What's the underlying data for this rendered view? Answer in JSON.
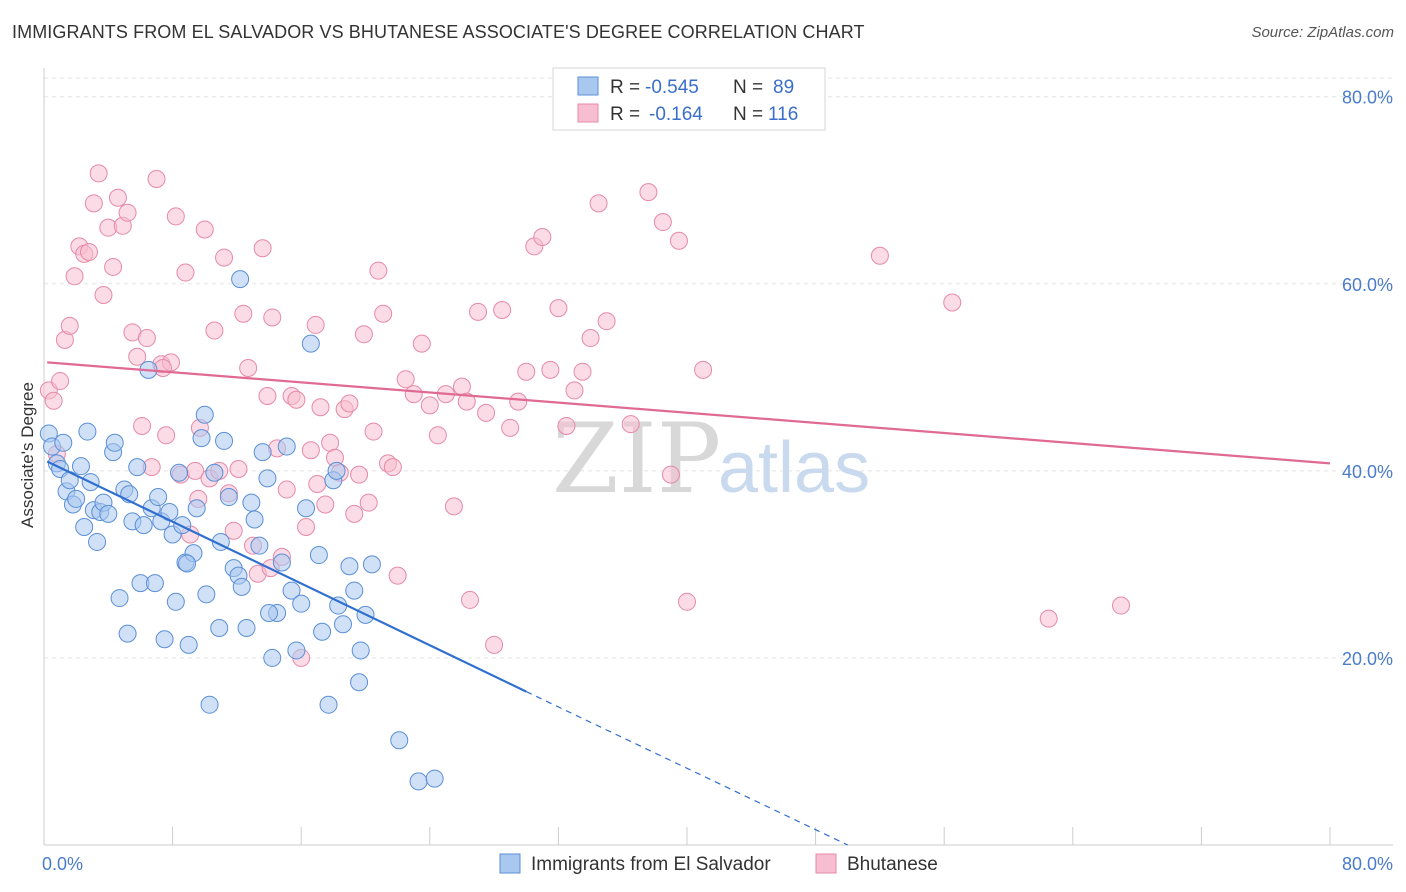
{
  "header": {
    "title": "IMMIGRANTS FROM EL SALVADOR VS BHUTANESE ASSOCIATE'S DEGREE CORRELATION CHART",
    "source": "Source: ZipAtlas.com"
  },
  "watermark": {
    "zip": "ZIP",
    "atlas": "atlas"
  },
  "colors": {
    "blue_fill": "#a9c8f0",
    "blue_stroke": "#5b8fd6",
    "blue_line": "#2f6fd0",
    "pink_fill": "#f7bdd0",
    "pink_stroke": "#e68aa8",
    "pink_line": "#e06a94",
    "grid": "#e3e3e3",
    "tick_text": "#4a7cc9"
  },
  "legend": {
    "r_label": "R =",
    "n_label": "N =",
    "rows": [
      {
        "series": "blue",
        "r": "-0.545",
        "n": "89"
      },
      {
        "series": "pink",
        "r": "-0.164",
        "n": "116"
      }
    ]
  },
  "chart_data": {
    "type": "scatter",
    "title": "IMMIGRANTS FROM EL SALVADOR VS BHUTANESE ASSOCIATE'S DEGREE CORRELATION CHART",
    "xlabel": "",
    "ylabel": "Associate's Degree",
    "xlim": [
      0,
      80
    ],
    "ylim": [
      0,
      82
    ],
    "x_tick_labels": [
      "0.0%",
      "80.0%"
    ],
    "y_ticks": [
      20,
      40,
      60,
      80
    ],
    "y_tick_labels": [
      "20.0%",
      "40.0%",
      "60.0%",
      "80.0%"
    ],
    "grid": true,
    "legend_position": "top-center",
    "series": [
      {
        "name": "Immigrants from El Salvador",
        "color": "blue",
        "points": [
          [
            0.3,
            44.0
          ],
          [
            0.5,
            42.6
          ],
          [
            0.8,
            40.8
          ],
          [
            1.0,
            40.2
          ],
          [
            1.2,
            43.0
          ],
          [
            1.4,
            37.8
          ],
          [
            1.6,
            39.0
          ],
          [
            1.8,
            36.4
          ],
          [
            2.0,
            37.0
          ],
          [
            2.3,
            40.5
          ],
          [
            2.5,
            34.0
          ],
          [
            2.7,
            44.2
          ],
          [
            2.9,
            38.8
          ],
          [
            3.1,
            35.8
          ],
          [
            3.3,
            32.4
          ],
          [
            3.5,
            35.6
          ],
          [
            3.7,
            36.6
          ],
          [
            4.0,
            35.4
          ],
          [
            4.3,
            42.0
          ],
          [
            4.4,
            43.0
          ],
          [
            4.7,
            26.4
          ],
          [
            5.0,
            38.0
          ],
          [
            5.2,
            22.6
          ],
          [
            5.3,
            37.5
          ],
          [
            5.5,
            34.6
          ],
          [
            5.8,
            40.4
          ],
          [
            6.0,
            28.0
          ],
          [
            6.2,
            34.2
          ],
          [
            6.5,
            50.8
          ],
          [
            6.7,
            36.0
          ],
          [
            6.9,
            28.0
          ],
          [
            7.1,
            37.2
          ],
          [
            7.3,
            34.6
          ],
          [
            7.5,
            22.0
          ],
          [
            7.8,
            35.6
          ],
          [
            8.0,
            33.2
          ],
          [
            8.2,
            26.0
          ],
          [
            8.4,
            39.8
          ],
          [
            8.6,
            34.2
          ],
          [
            8.8,
            30.2
          ],
          [
            9.0,
            21.4
          ],
          [
            9.3,
            31.2
          ],
          [
            9.5,
            36.0
          ],
          [
            9.8,
            43.5
          ],
          [
            10.0,
            46.0
          ],
          [
            10.1,
            26.8
          ],
          [
            10.3,
            15.0
          ],
          [
            10.6,
            39.8
          ],
          [
            10.9,
            23.2
          ],
          [
            11.2,
            43.2
          ],
          [
            11.5,
            37.2
          ],
          [
            11.8,
            29.6
          ],
          [
            12.1,
            28.8
          ],
          [
            12.3,
            27.6
          ],
          [
            12.6,
            23.2
          ],
          [
            12.9,
            36.6
          ],
          [
            13.1,
            34.8
          ],
          [
            13.4,
            32.0
          ],
          [
            13.6,
            42.0
          ],
          [
            13.9,
            39.2
          ],
          [
            14.2,
            20.0
          ],
          [
            14.5,
            24.8
          ],
          [
            14.8,
            30.2
          ],
          [
            15.1,
            42.6
          ],
          [
            15.4,
            27.2
          ],
          [
            15.7,
            20.8
          ],
          [
            16.0,
            25.8
          ],
          [
            16.3,
            36.0
          ],
          [
            16.6,
            53.6
          ],
          [
            17.1,
            31.0
          ],
          [
            17.3,
            22.8
          ],
          [
            17.7,
            15.0
          ],
          [
            18.0,
            39.0
          ],
          [
            18.3,
            25.6
          ],
          [
            18.6,
            23.6
          ],
          [
            19.0,
            29.8
          ],
          [
            19.3,
            27.2
          ],
          [
            19.7,
            20.8
          ],
          [
            20.0,
            24.6
          ],
          [
            20.4,
            30.0
          ],
          [
            22.1,
            11.2
          ],
          [
            23.3,
            6.8
          ],
          [
            24.3,
            7.1
          ],
          [
            19.6,
            17.4
          ],
          [
            12.2,
            60.5
          ],
          [
            11.0,
            32.4
          ],
          [
            8.9,
            30.1
          ],
          [
            14.0,
            24.8
          ],
          [
            18.2,
            40.0
          ]
        ],
        "trend": {
          "x0": 0.2,
          "y0": 41.0,
          "x1": 30.0,
          "y1": 16.4,
          "dash_to_x": 50.0,
          "dash_to_y": 0
        }
      },
      {
        "name": "Bhutanese",
        "color": "pink",
        "points": [
          [
            0.3,
            48.6
          ],
          [
            0.6,
            47.5
          ],
          [
            0.8,
            41.8
          ],
          [
            1.0,
            49.6
          ],
          [
            1.3,
            54.0
          ],
          [
            1.6,
            55.5
          ],
          [
            1.9,
            60.8
          ],
          [
            2.2,
            64.0
          ],
          [
            2.5,
            63.2
          ],
          [
            2.8,
            63.4
          ],
          [
            3.1,
            68.6
          ],
          [
            3.4,
            71.8
          ],
          [
            3.7,
            58.8
          ],
          [
            4.0,
            66.0
          ],
          [
            4.3,
            61.8
          ],
          [
            4.6,
            69.2
          ],
          [
            4.9,
            66.2
          ],
          [
            5.2,
            67.6
          ],
          [
            5.5,
            54.8
          ],
          [
            5.8,
            52.2
          ],
          [
            6.1,
            44.8
          ],
          [
            6.4,
            54.2
          ],
          [
            6.7,
            40.4
          ],
          [
            7.0,
            71.2
          ],
          [
            7.3,
            51.4
          ],
          [
            7.6,
            43.8
          ],
          [
            7.9,
            51.6
          ],
          [
            8.2,
            67.2
          ],
          [
            8.5,
            39.6
          ],
          [
            8.8,
            61.2
          ],
          [
            9.1,
            33.2
          ],
          [
            9.4,
            40.0
          ],
          [
            9.7,
            44.6
          ],
          [
            10.0,
            65.8
          ],
          [
            10.3,
            39.2
          ],
          [
            10.6,
            55.0
          ],
          [
            10.9,
            40.0
          ],
          [
            11.2,
            62.8
          ],
          [
            11.5,
            37.6
          ],
          [
            11.8,
            33.6
          ],
          [
            12.1,
            40.2
          ],
          [
            12.4,
            56.8
          ],
          [
            12.7,
            51.0
          ],
          [
            13.0,
            32.0
          ],
          [
            13.3,
            29.0
          ],
          [
            13.6,
            63.8
          ],
          [
            13.9,
            48.0
          ],
          [
            14.2,
            56.4
          ],
          [
            14.5,
            42.4
          ],
          [
            14.8,
            30.8
          ],
          [
            15.1,
            38.0
          ],
          [
            15.4,
            48.0
          ],
          [
            15.7,
            47.6
          ],
          [
            16.0,
            20.0
          ],
          [
            16.3,
            34.0
          ],
          [
            16.6,
            42.2
          ],
          [
            16.9,
            55.6
          ],
          [
            17.2,
            46.8
          ],
          [
            17.5,
            36.4
          ],
          [
            17.8,
            43.0
          ],
          [
            18.1,
            41.4
          ],
          [
            18.4,
            39.8
          ],
          [
            18.7,
            46.6
          ],
          [
            19.0,
            47.2
          ],
          [
            19.3,
            35.4
          ],
          [
            19.6,
            39.6
          ],
          [
            19.9,
            54.6
          ],
          [
            20.2,
            36.6
          ],
          [
            20.5,
            44.2
          ],
          [
            20.8,
            61.4
          ],
          [
            21.1,
            56.8
          ],
          [
            21.4,
            40.8
          ],
          [
            21.7,
            40.4
          ],
          [
            22.0,
            28.8
          ],
          [
            22.5,
            49.8
          ],
          [
            23.0,
            48.2
          ],
          [
            23.5,
            53.6
          ],
          [
            24.0,
            47.0
          ],
          [
            24.5,
            43.8
          ],
          [
            25.0,
            48.2
          ],
          [
            25.5,
            36.2
          ],
          [
            26.0,
            49.0
          ],
          [
            26.5,
            26.2
          ],
          [
            27.0,
            57.0
          ],
          [
            27.5,
            46.2
          ],
          [
            28.0,
            21.4
          ],
          [
            28.5,
            57.2
          ],
          [
            29.0,
            44.6
          ],
          [
            29.5,
            47.4
          ],
          [
            30.0,
            50.6
          ],
          [
            30.5,
            64.0
          ],
          [
            31.0,
            65.0
          ],
          [
            31.5,
            50.8
          ],
          [
            32.0,
            57.4
          ],
          [
            32.5,
            44.8
          ],
          [
            33.0,
            48.6
          ],
          [
            33.5,
            50.6
          ],
          [
            34.0,
            54.2
          ],
          [
            34.5,
            68.6
          ],
          [
            35.0,
            56.0
          ],
          [
            36.5,
            45.0
          ],
          [
            37.6,
            69.8
          ],
          [
            38.5,
            66.6
          ],
          [
            39.5,
            64.6
          ],
          [
            39.0,
            39.6
          ],
          [
            40.0,
            26.0
          ],
          [
            41.0,
            50.8
          ],
          [
            52.0,
            63.0
          ],
          [
            56.5,
            58.0
          ],
          [
            62.5,
            24.2
          ],
          [
            67.0,
            25.6
          ],
          [
            14.1,
            29.6
          ],
          [
            9.6,
            37.0
          ],
          [
            17.0,
            38.6
          ],
          [
            26.3,
            47.4
          ],
          [
            7.4,
            51.0
          ]
        ],
        "trend": {
          "x0": 0.2,
          "y0": 51.6,
          "x1": 80.0,
          "y1": 40.8
        }
      }
    ]
  }
}
